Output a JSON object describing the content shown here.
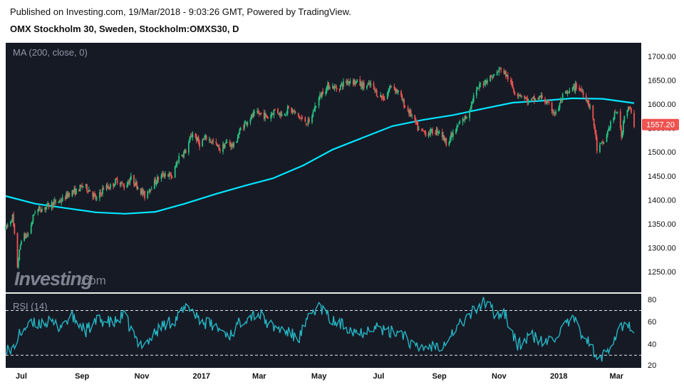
{
  "header": {
    "published": "Published on Investing.com, 19/Mar/2018 - 9:03:26 GMT, Powered by TradingView.",
    "symbol": "OMX Stockholm 30, Sweden, Stockholm:OMXS30, D"
  },
  "indicators": {
    "ma_label": "MA (200, close, 0)",
    "rsi_label": "RSI (14)"
  },
  "logo": {
    "brand": "Investing",
    "suffix": ".com"
  },
  "colors": {
    "background": "#161a25",
    "up": "#26c281",
    "down": "#ef5350",
    "ma": "#00e5ff",
    "rsi": "#25b4c2",
    "price_tag": "#ef5350",
    "axis_text": "#111111",
    "guide": "#d9d9d9"
  },
  "last_price": {
    "label": "1557.20",
    "value": 1557.2
  },
  "chart_data": [
    {
      "type": "candlestick",
      "title": "OMX Stockholm 30, Sweden, Stockholm:OMXS30, D",
      "xlabel": "",
      "ylabel": "",
      "ylim": [
        1210,
        1725
      ],
      "y_ticks": [
        1250,
        1300,
        1350,
        1400,
        1450,
        1500,
        1550,
        1600,
        1650,
        1700
      ],
      "y_tick_labels": [
        "1250.00",
        "1300.00",
        "1350.00",
        "1400.00",
        "1450.00",
        "1500.00",
        "1550.00",
        "1600.00",
        "1650.00",
        "1700.00"
      ],
      "x_ticks": [
        "Jul",
        "Sep",
        "Nov",
        "2017",
        "Mar",
        "May",
        "Jul",
        "Sep",
        "Nov",
        "2018",
        "Mar"
      ],
      "x_range": [
        "2016-06-15",
        "2018-03-19"
      ],
      "grid": false,
      "price_series": {
        "name": "OMXS30",
        "points": [
          [
            "2016-06-15",
            1340
          ],
          [
            "2016-06-22",
            1365
          ],
          [
            "2016-06-27",
            1262
          ],
          [
            "2016-07-01",
            1320
          ],
          [
            "2016-07-08",
            1328
          ],
          [
            "2016-07-15",
            1378
          ],
          [
            "2016-07-22",
            1382
          ],
          [
            "2016-07-29",
            1388
          ],
          [
            "2016-08-05",
            1395
          ],
          [
            "2016-08-12",
            1400
          ],
          [
            "2016-08-19",
            1415
          ],
          [
            "2016-08-26",
            1418
          ],
          [
            "2016-09-02",
            1430
          ],
          [
            "2016-09-09",
            1420
          ],
          [
            "2016-09-16",
            1400
          ],
          [
            "2016-09-23",
            1425
          ],
          [
            "2016-09-30",
            1428
          ],
          [
            "2016-10-07",
            1442
          ],
          [
            "2016-10-14",
            1428
          ],
          [
            "2016-10-21",
            1445
          ],
          [
            "2016-10-28",
            1428
          ],
          [
            "2016-11-04",
            1408
          ],
          [
            "2016-11-09",
            1425
          ],
          [
            "2016-11-18",
            1445
          ],
          [
            "2016-11-25",
            1455
          ],
          [
            "2016-12-02",
            1448
          ],
          [
            "2016-12-09",
            1490
          ],
          [
            "2016-12-16",
            1502
          ],
          [
            "2016-12-23",
            1540
          ],
          [
            "2016-12-30",
            1517
          ],
          [
            "2017-01-06",
            1530
          ],
          [
            "2017-01-13",
            1520
          ],
          [
            "2017-01-20",
            1505
          ],
          [
            "2017-01-27",
            1520
          ],
          [
            "2017-02-03",
            1512
          ],
          [
            "2017-02-10",
            1548
          ],
          [
            "2017-02-17",
            1566
          ],
          [
            "2017-02-24",
            1578
          ],
          [
            "2017-03-03",
            1580
          ],
          [
            "2017-03-10",
            1572
          ],
          [
            "2017-03-17",
            1588
          ],
          [
            "2017-03-24",
            1578
          ],
          [
            "2017-03-31",
            1590
          ],
          [
            "2017-04-07",
            1580
          ],
          [
            "2017-04-14",
            1567
          ],
          [
            "2017-04-21",
            1560
          ],
          [
            "2017-04-28",
            1600
          ],
          [
            "2017-05-05",
            1627
          ],
          [
            "2017-05-12",
            1640
          ],
          [
            "2017-05-19",
            1632
          ],
          [
            "2017-05-26",
            1643
          ],
          [
            "2017-06-02",
            1650
          ],
          [
            "2017-06-09",
            1645
          ],
          [
            "2017-06-16",
            1637
          ],
          [
            "2017-06-23",
            1640
          ],
          [
            "2017-06-30",
            1620
          ],
          [
            "2017-07-07",
            1612
          ],
          [
            "2017-07-14",
            1640
          ],
          [
            "2017-07-21",
            1625
          ],
          [
            "2017-07-28",
            1595
          ],
          [
            "2017-08-04",
            1575
          ],
          [
            "2017-08-11",
            1545
          ],
          [
            "2017-08-18",
            1540
          ],
          [
            "2017-08-25",
            1542
          ],
          [
            "2017-09-01",
            1545
          ],
          [
            "2017-09-08",
            1520
          ],
          [
            "2017-09-15",
            1537
          ],
          [
            "2017-09-22",
            1560
          ],
          [
            "2017-09-29",
            1575
          ],
          [
            "2017-10-06",
            1615
          ],
          [
            "2017-10-13",
            1640
          ],
          [
            "2017-10-20",
            1652
          ],
          [
            "2017-10-27",
            1660
          ],
          [
            "2017-11-03",
            1675
          ],
          [
            "2017-11-10",
            1655
          ],
          [
            "2017-11-17",
            1625
          ],
          [
            "2017-11-24",
            1620
          ],
          [
            "2017-12-01",
            1605
          ],
          [
            "2017-12-08",
            1610
          ],
          [
            "2017-12-15",
            1615
          ],
          [
            "2017-12-22",
            1595
          ],
          [
            "2017-12-29",
            1580
          ],
          [
            "2018-01-05",
            1615
          ],
          [
            "2018-01-12",
            1625
          ],
          [
            "2018-01-19",
            1638
          ],
          [
            "2018-01-26",
            1625
          ],
          [
            "2018-02-02",
            1595
          ],
          [
            "2018-02-07",
            1545
          ],
          [
            "2018-02-09",
            1505
          ],
          [
            "2018-02-16",
            1520
          ],
          [
            "2018-02-23",
            1560
          ],
          [
            "2018-03-02",
            1588
          ],
          [
            "2018-03-06",
            1530
          ],
          [
            "2018-03-09",
            1580
          ],
          [
            "2018-03-14",
            1592
          ],
          [
            "2018-03-19",
            1557
          ]
        ]
      },
      "ma_series": {
        "name": "MA (200, close, 0)",
        "points": [
          [
            "2016-06-15",
            1408
          ],
          [
            "2016-07-15",
            1392
          ],
          [
            "2016-08-15",
            1383
          ],
          [
            "2016-09-15",
            1374
          ],
          [
            "2016-10-15",
            1371
          ],
          [
            "2016-11-15",
            1375
          ],
          [
            "2016-12-15",
            1392
          ],
          [
            "2017-01-15",
            1412
          ],
          [
            "2017-02-15",
            1430
          ],
          [
            "2017-03-15",
            1445
          ],
          [
            "2017-04-15",
            1472
          ],
          [
            "2017-05-15",
            1505
          ],
          [
            "2017-06-15",
            1530
          ],
          [
            "2017-07-15",
            1554
          ],
          [
            "2017-08-15",
            1567
          ],
          [
            "2017-09-15",
            1577
          ],
          [
            "2017-10-15",
            1590
          ],
          [
            "2017-11-15",
            1603
          ],
          [
            "2017-12-15",
            1607
          ],
          [
            "2018-01-15",
            1612
          ],
          [
            "2018-02-15",
            1611
          ],
          [
            "2018-03-19",
            1602
          ]
        ]
      }
    },
    {
      "type": "line",
      "title": "RSI (14)",
      "ylim": [
        20,
        85
      ],
      "y_ticks": [
        20,
        40,
        60,
        80
      ],
      "y_tick_labels": [
        "20",
        "40",
        "60",
        "80"
      ],
      "reference_lines": [
        30,
        70
      ],
      "series": [
        {
          "name": "RSI (14)",
          "points": [
            [
              "2016-06-15",
              38
            ],
            [
              "2016-06-20",
              32
            ],
            [
              "2016-06-27",
              45
            ],
            [
              "2016-07-04",
              55
            ],
            [
              "2016-07-15",
              58
            ],
            [
              "2016-07-25",
              60
            ],
            [
              "2016-08-08",
              56
            ],
            [
              "2016-08-22",
              64
            ],
            [
              "2016-09-05",
              52
            ],
            [
              "2016-09-19",
              62
            ],
            [
              "2016-10-03",
              58
            ],
            [
              "2016-10-14",
              66
            ],
            [
              "2016-10-28",
              40
            ],
            [
              "2016-11-07",
              42
            ],
            [
              "2016-11-21",
              56
            ],
            [
              "2016-12-05",
              62
            ],
            [
              "2016-12-19",
              74
            ],
            [
              "2017-01-02",
              60
            ],
            [
              "2017-01-16",
              55
            ],
            [
              "2017-01-30",
              48
            ],
            [
              "2017-02-13",
              63
            ],
            [
              "2017-02-27",
              68
            ],
            [
              "2017-03-13",
              56
            ],
            [
              "2017-03-27",
              52
            ],
            [
              "2017-04-10",
              45
            ],
            [
              "2017-04-24",
              68
            ],
            [
              "2017-05-01",
              74
            ],
            [
              "2017-05-15",
              60
            ],
            [
              "2017-05-29",
              56
            ],
            [
              "2017-06-12",
              50
            ],
            [
              "2017-06-26",
              57
            ],
            [
              "2017-07-10",
              50
            ],
            [
              "2017-07-24",
              52
            ],
            [
              "2017-08-07",
              36
            ],
            [
              "2017-08-21",
              38
            ],
            [
              "2017-09-04",
              40
            ],
            [
              "2017-09-18",
              54
            ],
            [
              "2017-10-02",
              66
            ],
            [
              "2017-10-16",
              78
            ],
            [
              "2017-10-30",
              66
            ],
            [
              "2017-11-06",
              70
            ],
            [
              "2017-11-20",
              38
            ],
            [
              "2017-12-04",
              48
            ],
            [
              "2017-12-18",
              40
            ],
            [
              "2018-01-01",
              50
            ],
            [
              "2018-01-15",
              62
            ],
            [
              "2018-01-29",
              45
            ],
            [
              "2018-02-05",
              35
            ],
            [
              "2018-02-09",
              24
            ],
            [
              "2018-02-16",
              30
            ],
            [
              "2018-02-26",
              45
            ],
            [
              "2018-03-05",
              55
            ],
            [
              "2018-03-12",
              58
            ],
            [
              "2018-03-19",
              45
            ]
          ]
        }
      ]
    }
  ]
}
